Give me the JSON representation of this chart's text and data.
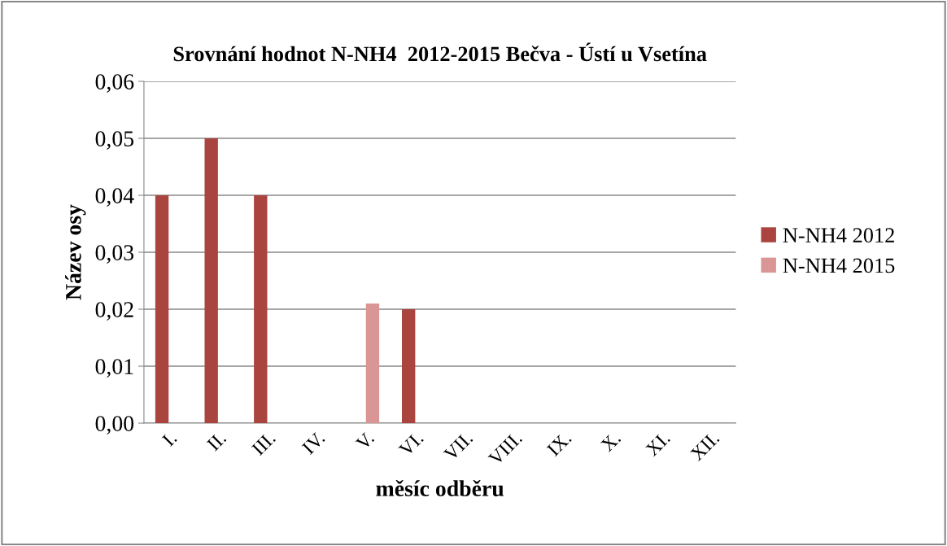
{
  "chart_data": {
    "type": "bar",
    "title": "Srovnání hodnot N-NH4  2012-2015 Bečva - Ústí u Vsetína",
    "xlabel": "měsíc odběru",
    "ylabel": "Název osy",
    "categories": [
      "I.",
      "II.",
      "III.",
      "IV.",
      "V.",
      "VI.",
      "VII.",
      "VIII.",
      "IX.",
      "X.",
      "XI.",
      "XII."
    ],
    "series": [
      {
        "name": "N-NH4 2012",
        "color": "#a9443f",
        "values": [
          0.04,
          0.05,
          0.04,
          null,
          null,
          0.02,
          null,
          null,
          null,
          null,
          null,
          null
        ]
      },
      {
        "name": "N-NH4 2015",
        "color": "#d99694",
        "values": [
          null,
          null,
          null,
          null,
          0.021,
          null,
          null,
          null,
          null,
          null,
          null,
          null
        ]
      }
    ],
    "ylim": [
      0,
      0.06
    ],
    "yticks": [
      {
        "value": 0,
        "label": "0,00"
      },
      {
        "value": 0.01,
        "label": "0,01"
      },
      {
        "value": 0.02,
        "label": "0,02"
      },
      {
        "value": 0.03,
        "label": "0,03"
      },
      {
        "value": 0.04,
        "label": "0,04"
      },
      {
        "value": 0.05,
        "label": "0,05"
      },
      {
        "value": 0.06,
        "label": "0,06"
      }
    ],
    "grid": "y",
    "legend": "right"
  }
}
